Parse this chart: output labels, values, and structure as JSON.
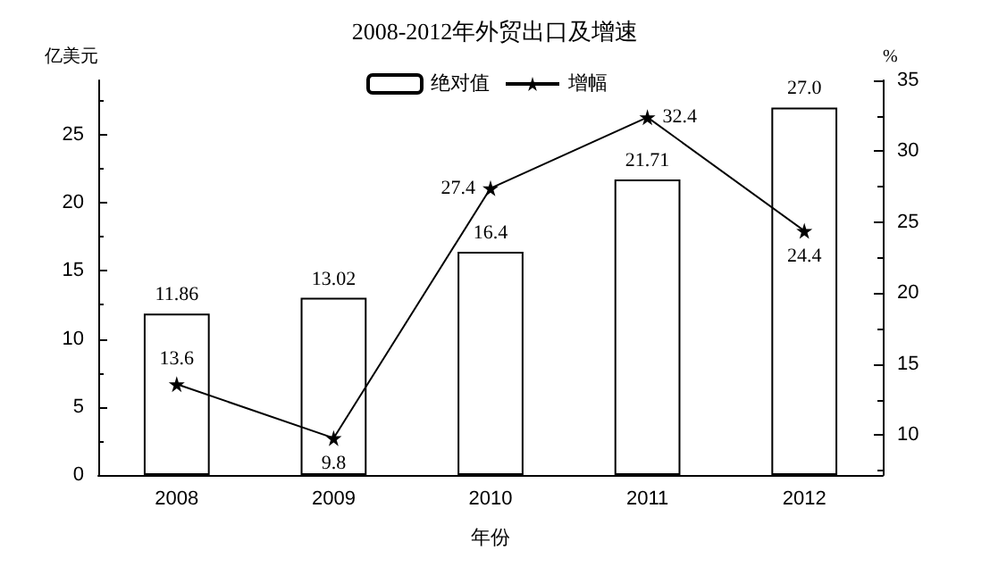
{
  "chart_data": {
    "type": "bar",
    "title": "2008-2012年外贸出口及增速",
    "xlabel": "年份",
    "ylabel": "亿美元",
    "y2label": "%",
    "categories": [
      "2008",
      "2009",
      "2010",
      "2011",
      "2012"
    ],
    "series": [
      {
        "name": "绝对值",
        "color": "#ffffff",
        "values": [
          11.86,
          13.02,
          16.4,
          21.71,
          27.0
        ],
        "value_labels": [
          "11.86",
          "13.02",
          "16.4",
          "21.71",
          "27.0"
        ]
      },
      {
        "name": "增幅",
        "type": "line",
        "axis": "y2",
        "color": "#000000",
        "marker": "star",
        "values": [
          13.6,
          9.8,
          27.4,
          32.4,
          24.4
        ],
        "value_labels": [
          "13.6",
          "9.8",
          "27.4",
          "32.4",
          "24.4"
        ]
      }
    ],
    "ylim": [
      0,
      29
    ],
    "yticks": [
      0,
      5,
      10,
      15,
      20,
      25
    ],
    "y2lim": [
      7.2,
      35
    ],
    "y2ticks": [
      10,
      15,
      20,
      25,
      30,
      35
    ],
    "grid": false,
    "legend": "top"
  }
}
